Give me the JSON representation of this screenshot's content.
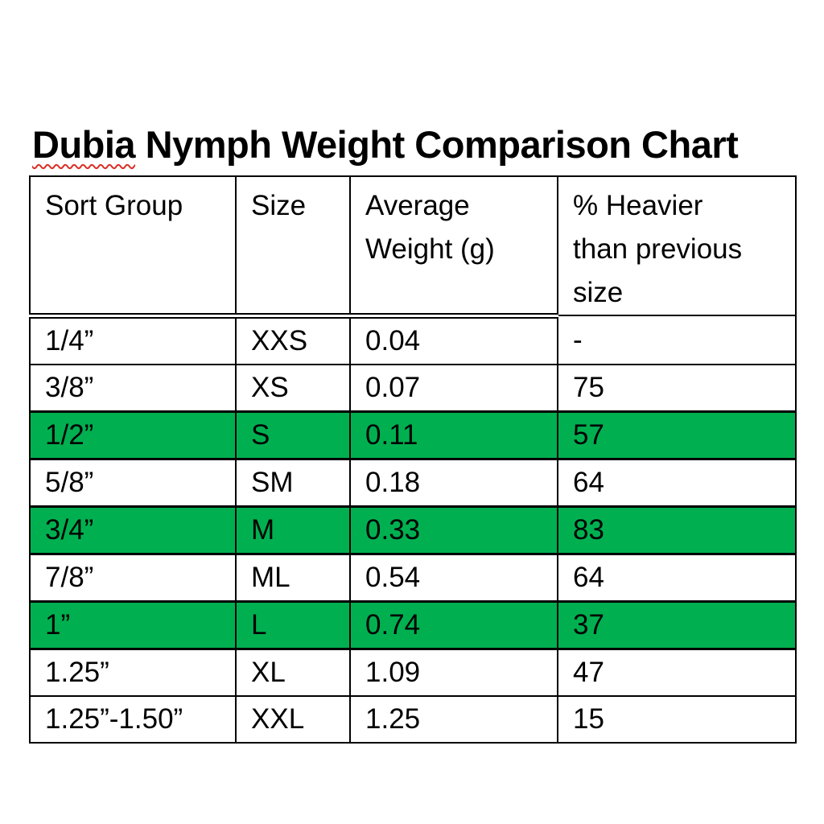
{
  "title": {
    "misspelled_word": "Dubia",
    "rest": " Nymph Weight Comparison Chart",
    "spellcheck_underline_color": "#d93025"
  },
  "table": {
    "highlight_color": "#00B050",
    "columns": [
      {
        "label": "Sort Group"
      },
      {
        "label": "Size"
      },
      {
        "label": "Average\nWeight (g)"
      },
      {
        "label": "% Heavier\nthan previous\nsize"
      }
    ],
    "rows": [
      {
        "sort_group": "1/4”",
        "size": "XXS",
        "avg_weight": "0.04",
        "pct_heavier": "-",
        "highlighted": false
      },
      {
        "sort_group": "3/8”",
        "size": "XS",
        "avg_weight": "0.07",
        "pct_heavier": "75",
        "highlighted": false
      },
      {
        "sort_group": "1/2”",
        "size": "S",
        "avg_weight": "0.11",
        "pct_heavier": "57",
        "highlighted": true
      },
      {
        "sort_group": "5/8”",
        "size": "SM",
        "avg_weight": "0.18",
        "pct_heavier": "64",
        "highlighted": false
      },
      {
        "sort_group": "3/4”",
        "size": "M",
        "avg_weight": "0.33",
        "pct_heavier": "83",
        "highlighted": true
      },
      {
        "sort_group": "7/8”",
        "size": "ML",
        "avg_weight": "0.54",
        "pct_heavier": "64",
        "highlighted": false
      },
      {
        "sort_group": "1”",
        "size": "L",
        "avg_weight": "0.74",
        "pct_heavier": "37",
        "highlighted": true
      },
      {
        "sort_group": "1.25”",
        "size": "XL",
        "avg_weight": "1.09",
        "pct_heavier": "47",
        "highlighted": false
      },
      {
        "sort_group": "1.25”-1.50”",
        "size": "XXL",
        "avg_weight": "1.25",
        "pct_heavier": "15",
        "highlighted": false
      }
    ]
  },
  "chart_data": {
    "type": "table",
    "title": "Dubia Nymph Weight Comparison Chart",
    "categories": [
      "1/4”",
      "3/8”",
      "1/2”",
      "5/8”",
      "3/4”",
      "7/8”",
      "1”",
      "1.25”",
      "1.25”-1.50”"
    ],
    "series": [
      {
        "name": "Size",
        "values": [
          "XXS",
          "XS",
          "S",
          "SM",
          "M",
          "ML",
          "L",
          "XL",
          "XXL"
        ]
      },
      {
        "name": "Average Weight (g)",
        "values": [
          0.04,
          0.07,
          0.11,
          0.18,
          0.33,
          0.54,
          0.74,
          1.09,
          1.25
        ]
      },
      {
        "name": "% Heavier than previous size",
        "values": [
          null,
          75,
          57,
          64,
          83,
          64,
          37,
          47,
          15
        ]
      }
    ],
    "highlighted_rows": [
      "1/2”",
      "3/4”",
      "1”"
    ]
  }
}
